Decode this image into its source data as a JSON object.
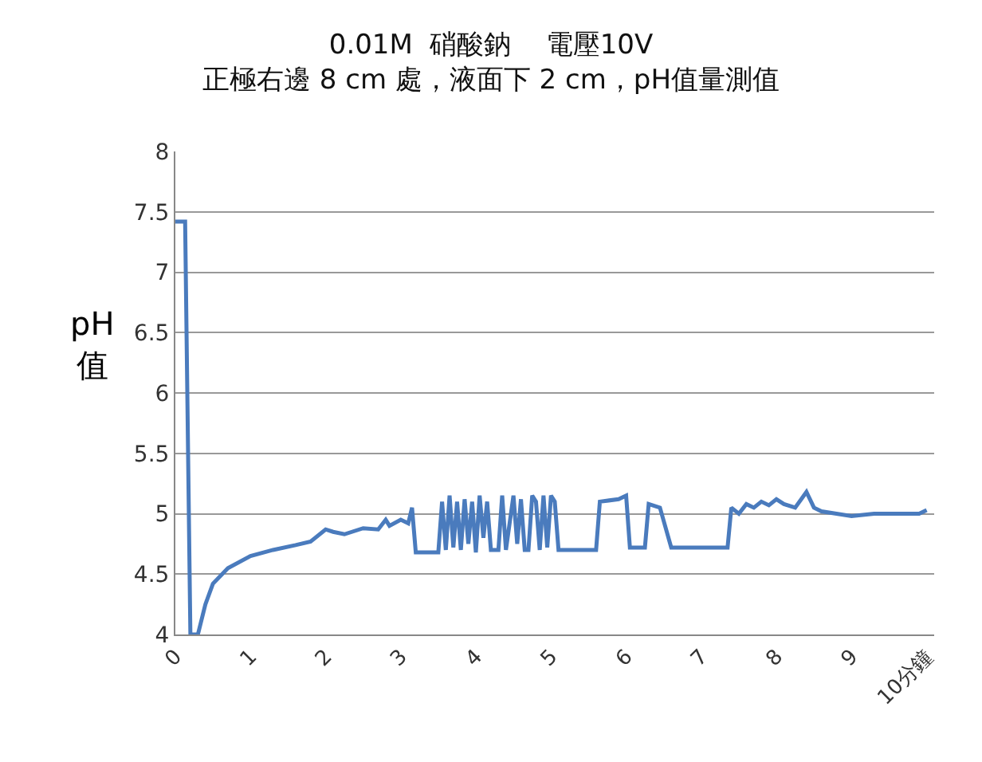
{
  "chart_data": {
    "type": "line",
    "title": "0.01M  硝酸鈉    電壓10V",
    "subtitle": "正極右邊 8 cm 處，液面下 2 cm，pH值量測值",
    "ylabel": "pH\n值",
    "x": [
      0,
      0.13,
      0.2,
      0.3,
      0.4,
      0.5,
      0.7,
      1.0,
      1.3,
      1.6,
      1.8,
      2.0,
      2.1,
      2.25,
      2.5,
      2.7,
      2.8,
      2.85,
      3.0,
      3.1,
      3.15,
      3.2,
      3.5,
      3.55,
      3.6,
      3.65,
      3.7,
      3.75,
      3.8,
      3.85,
      3.9,
      3.95,
      4.0,
      4.05,
      4.1,
      4.15,
      4.2,
      4.3,
      4.35,
      4.4,
      4.5,
      4.55,
      4.6,
      4.65,
      4.7,
      4.75,
      4.8,
      4.85,
      4.9,
      4.95,
      5.0,
      5.05,
      5.1,
      5.6,
      5.65,
      5.9,
      6.0,
      6.05,
      6.25,
      6.3,
      6.45,
      6.6,
      7.35,
      7.4,
      7.5,
      7.6,
      7.7,
      7.8,
      7.9,
      8.0,
      8.1,
      8.25,
      8.4,
      8.5,
      8.6,
      8.8,
      9.0,
      9.3,
      9.6,
      9.9,
      10.0
    ],
    "values": [
      7.42,
      7.42,
      4.0,
      4.0,
      4.25,
      4.42,
      4.55,
      4.65,
      4.7,
      4.74,
      4.77,
      4.87,
      4.85,
      4.83,
      4.88,
      4.87,
      4.95,
      4.9,
      4.95,
      4.92,
      5.05,
      4.68,
      4.68,
      5.1,
      4.7,
      5.15,
      4.72,
      5.1,
      4.7,
      5.12,
      4.75,
      5.1,
      4.68,
      5.15,
      4.8,
      5.1,
      4.7,
      4.7,
      5.15,
      4.7,
      5.15,
      4.75,
      5.12,
      4.7,
      4.7,
      5.15,
      5.1,
      4.7,
      5.15,
      4.72,
      5.15,
      5.1,
      4.7,
      4.7,
      5.1,
      5.12,
      5.15,
      4.72,
      4.72,
      5.08,
      5.05,
      4.72,
      4.72,
      5.05,
      5.0,
      5.08,
      5.05,
      5.1,
      5.07,
      5.12,
      5.08,
      5.05,
      5.18,
      5.05,
      5.02,
      5.0,
      4.98,
      5.0,
      5.0,
      5.0,
      5.03
    ],
    "color": "#4a7bbd",
    "xlim": [
      0,
      10.1
    ],
    "xticks": [
      0,
      1,
      2,
      3,
      4,
      5,
      6,
      7,
      8,
      9,
      {
        "value": 10,
        "label": "10分鐘"
      }
    ],
    "ylim": [
      4,
      8
    ],
    "yticks": [
      4,
      4.5,
      5,
      5.5,
      6,
      6.5,
      7,
      7.5,
      8
    ],
    "grid": "y",
    "marker": "none",
    "line_style": "solid"
  }
}
